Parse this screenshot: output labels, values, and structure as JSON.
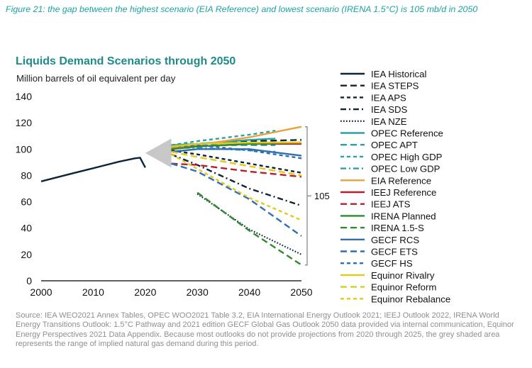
{
  "caption": "Figure 21: the gap between the highest scenario (EIA Reference) and lowest scenario (IRENA 1.5°C) is 105 mb/d in 2050",
  "source": "Source: IEA WEO2021 Annex Tables, OPEC WOO2021 Table 3.2, EIA International Energy Outlook 2021; IEEJ Outlook 2022, IRENA World Energy Transitions Outlook: 1.5°C Pathway and 2021 edition GECF Global Gas Outlook 2050 data provided via internal communication, Equinor Energy Perspectives 2021 Data Appendix. Because most outlooks do not provide projections from 2020 through 2025, the grey shaded area represents the range of implied natural gas demand during this period.",
  "colors": {
    "caption": "#1aa3a3",
    "title": "#1f8a8a",
    "axis": "#000000",
    "bracket": "#7f7f7f",
    "grey_area": "#c8c8c8"
  },
  "chart_data": {
    "type": "line",
    "title": "Liquids Demand Scenarios through 2050",
    "ylabel": "Million barrels of oil equivalent per day",
    "xlabel": "",
    "xlim": [
      2000,
      2050
    ],
    "ylim": [
      0,
      140
    ],
    "xticks": [
      2000,
      2010,
      2020,
      2030,
      2040,
      2050
    ],
    "yticks": [
      0,
      20,
      40,
      60,
      80,
      100,
      120,
      140
    ],
    "bracket_label": "105",
    "bracket_range": [
      12,
      117
    ],
    "grey_area": {
      "x_tip": 2020,
      "x_base": 2025,
      "y_center": 97,
      "half_height": 11
    },
    "series": [
      {
        "name": "IEA Historical",
        "color": "#0b2438",
        "dash": "solid",
        "x": [
          2000,
          2003,
          2006,
          2009,
          2012,
          2015,
          2018,
          2019,
          2020
        ],
        "y": [
          75.5,
          78.5,
          81.5,
          84.5,
          87.5,
          90.5,
          93,
          93.5,
          86
        ]
      },
      {
        "name": "IEA STEPS",
        "color": "#0b2438",
        "dash": "longdash",
        "x": [
          2025,
          2030,
          2040,
          2050
        ],
        "y": [
          102,
          104,
          106,
          107
        ]
      },
      {
        "name": "IEA APS",
        "color": "#0b2438",
        "dash": "shortdash",
        "x": [
          2025,
          2030,
          2040,
          2050
        ],
        "y": [
          99,
          96,
          89,
          82
        ]
      },
      {
        "name": "IEA SDS",
        "color": "#0b2438",
        "dash": "dashdot",
        "x": [
          2025,
          2030,
          2040,
          2050
        ],
        "y": [
          96,
          88,
          70,
          57
        ]
      },
      {
        "name": "IEA NZE",
        "color": "#0b2438",
        "dash": "dotted",
        "x": [
          2030,
          2040,
          2050
        ],
        "y": [
          66,
          39,
          20
        ]
      },
      {
        "name": "OPEC Reference",
        "color": "#2aa0a8",
        "dash": "solid",
        "x": [
          2025,
          2030,
          2040,
          2045
        ],
        "y": [
          103,
          104,
          107,
          108
        ]
      },
      {
        "name": "OPEC APT",
        "color": "#2aa0a8",
        "dash": "longdash",
        "x": [
          2025,
          2030,
          2040,
          2045
        ],
        "y": [
          102,
          103,
          103,
          103
        ]
      },
      {
        "name": "OPEC High GDP",
        "color": "#2aa0a8",
        "dash": "shortdash",
        "x": [
          2025,
          2030,
          2040,
          2045
        ],
        "y": [
          103,
          106,
          111,
          114
        ]
      },
      {
        "name": "OPEC Low GDP",
        "color": "#2aa0a8",
        "dash": "dashdot",
        "x": [
          2025,
          2030,
          2040,
          2045
        ],
        "y": [
          101,
          101,
          99,
          98
        ]
      },
      {
        "name": "EIA Reference",
        "color": "#e8a33b",
        "dash": "solid",
        "x": [
          2025,
          2030,
          2040,
          2050
        ],
        "y": [
          101,
          103,
          109,
          117
        ]
      },
      {
        "name": "IEEJ Reference",
        "color": "#b5202c",
        "dash": "solid",
        "x": [
          2025,
          2030,
          2040,
          2050
        ],
        "y": [
          100,
          102,
          104,
          104
        ]
      },
      {
        "name": "IEEJ ATS",
        "color": "#b5202c",
        "dash": "longdash",
        "x": [
          2025,
          2030,
          2040,
          2050
        ],
        "y": [
          89,
          88,
          83,
          79
        ]
      },
      {
        "name": "IRENA Planned",
        "color": "#2e8b2e",
        "dash": "solid",
        "x": [
          2025,
          2030,
          2040,
          2050
        ],
        "y": [
          100,
          102,
          104,
          105
        ]
      },
      {
        "name": "IRENA 1.5-S",
        "color": "#2e8b2e",
        "dash": "longdash",
        "x": [
          2030,
          2040,
          2050
        ],
        "y": [
          67,
          38,
          12
        ]
      },
      {
        "name": "GECF RCS",
        "color": "#2f6fb0",
        "dash": "solid",
        "x": [
          2025,
          2030,
          2040,
          2050
        ],
        "y": [
          98,
          100,
          100,
          95
        ]
      },
      {
        "name": "GECF ETS",
        "color": "#2f6fb0",
        "dash": "longdash",
        "x": [
          2025,
          2030,
          2040,
          2050
        ],
        "y": [
          89,
          83,
          62,
          34
        ]
      },
      {
        "name": "GECF HS",
        "color": "#2f6fb0",
        "dash": "shortdash",
        "x": [
          2025,
          2030,
          2040,
          2050
        ],
        "y": [
          102,
          103,
          99,
          93
        ]
      },
      {
        "name": "Equinor Rivalry",
        "color": "#e3c91c",
        "dash": "solid",
        "x": [
          2025,
          2030,
          2040,
          2050
        ],
        "y": [
          102,
          104,
          105,
          105
        ]
      },
      {
        "name": "Equinor Reform",
        "color": "#e3c91c",
        "dash": "longdash",
        "x": [
          2025,
          2030,
          2040,
          2050
        ],
        "y": [
          98,
          94,
          87,
          80
        ]
      },
      {
        "name": "Equinor Rebalance",
        "color": "#e3c91c",
        "dash": "shortdash",
        "x": [
          2025,
          2030,
          2040,
          2050
        ],
        "y": [
          96,
          85,
          63,
          46
        ]
      }
    ]
  }
}
